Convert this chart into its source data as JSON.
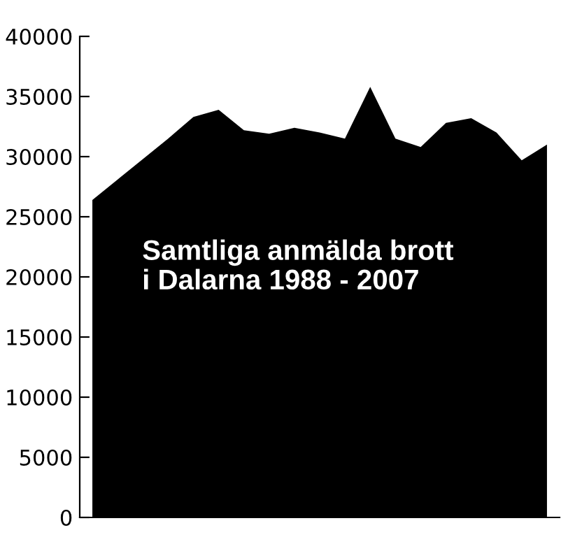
{
  "chart_data": {
    "type": "area",
    "title": "Samtliga anmälda brott\ni Dalarna 1988 - 2007",
    "categories": [
      null,
      null,
      null,
      null,
      null,
      null,
      null,
      null,
      null,
      null,
      null,
      null,
      null,
      null,
      null,
      null,
      null,
      null,
      null
    ],
    "series": [
      {
        "color": "#000000",
        "values": [
          26400,
          28100,
          29800,
          31500,
          33300,
          33900,
          32200,
          31900,
          32400,
          32000,
          31500,
          35800,
          31500,
          30800,
          32800,
          33200,
          32000,
          29700,
          31000
        ]
      }
    ],
    "ylim": [
      0,
      40000
    ],
    "yticks": [
      0,
      5000,
      10000,
      15000,
      20000,
      25000,
      30000,
      35000,
      40000
    ],
    "grid": false,
    "legend": false
  }
}
